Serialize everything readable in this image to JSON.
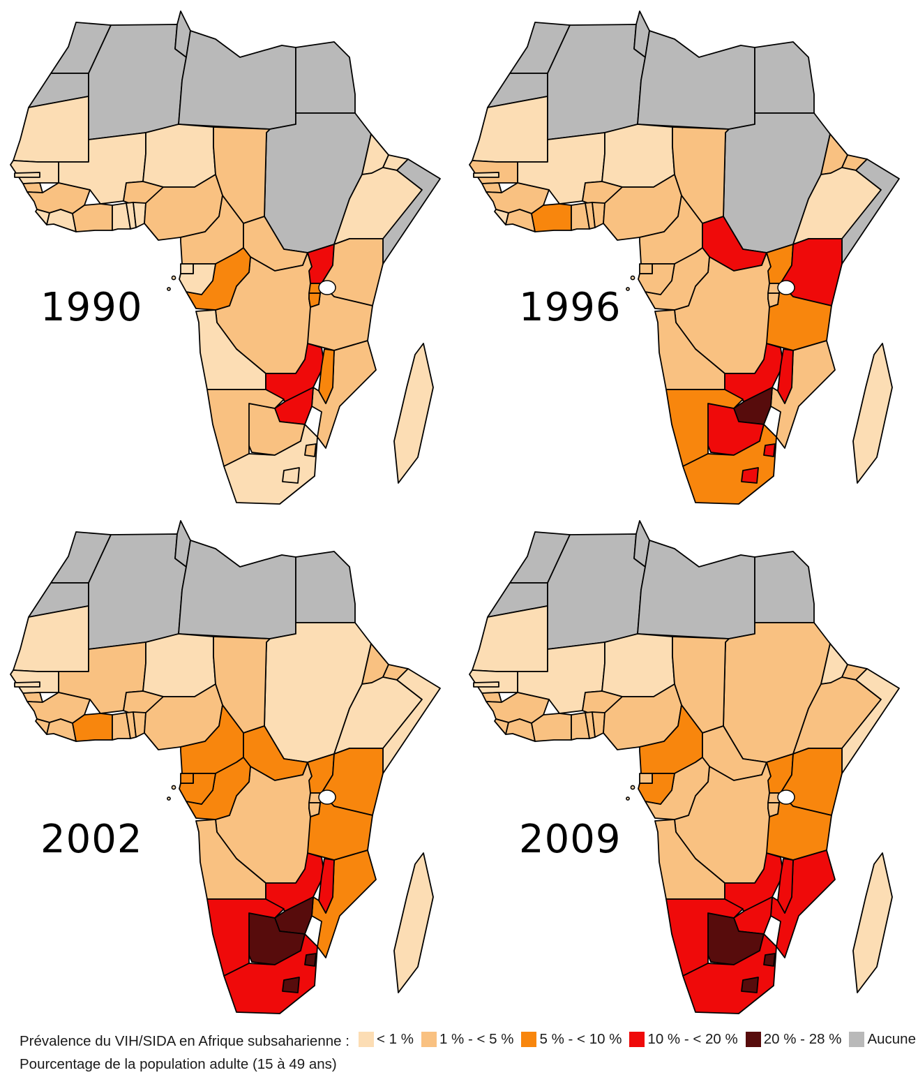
{
  "page": {
    "background": "#ffffff"
  },
  "years": [
    {
      "label": "1990"
    },
    {
      "label": "1996"
    },
    {
      "label": "2002"
    },
    {
      "label": "2009"
    }
  ],
  "legend": {
    "title": "Prévalence du VIH/SIDA en Afrique subsaharienne :",
    "subtitle": "Pourcentage de la population adulte (15 à 49 ans)",
    "items": [
      {
        "key": "lt1",
        "label": "< 1 %",
        "color": "#FCDDB4"
      },
      {
        "key": "1to5",
        "label": "1 % - < 5 %",
        "color": "#F9C181"
      },
      {
        "key": "5to10",
        "label": "5 % - < 10 %",
        "color": "#F8860D"
      },
      {
        "key": "10to20",
        "label": "10 % - < 20 %",
        "color": "#EF0A0A"
      },
      {
        "key": "20to28",
        "label": "20 % - 28 %",
        "color": "#570C0C"
      },
      {
        "key": "nodata",
        "label": "Aucune donnée",
        "color": "#B9B9B9"
      }
    ]
  },
  "map_data": {
    "type": "choropleth",
    "region": "Afrique",
    "border_color": "#000000",
    "lake_color": "#ffffff",
    "countries": {
      "maroc": {
        "name": "Maroc",
        "cats": {
          "1990": "nodata",
          "1996": "nodata",
          "2002": "nodata",
          "2009": "nodata"
        }
      },
      "sahara-occidental": {
        "name": "Sahara occidental",
        "cats": {
          "1990": "nodata",
          "1996": "nodata",
          "2002": "nodata",
          "2009": "nodata"
        }
      },
      "algerie": {
        "name": "Algérie",
        "cats": {
          "1990": "nodata",
          "1996": "nodata",
          "2002": "nodata",
          "2009": "nodata"
        }
      },
      "tunisie": {
        "name": "Tunisie",
        "cats": {
          "1990": "nodata",
          "1996": "nodata",
          "2002": "nodata",
          "2009": "nodata"
        }
      },
      "libye": {
        "name": "Libye",
        "cats": {
          "1990": "nodata",
          "1996": "nodata",
          "2002": "nodata",
          "2009": "nodata"
        }
      },
      "egypte": {
        "name": "Égypte",
        "cats": {
          "1990": "nodata",
          "1996": "nodata",
          "2002": "nodata",
          "2009": "nodata"
        }
      },
      "soudan": {
        "name": "Soudan",
        "cats": {
          "1990": "nodata",
          "1996": "nodata",
          "2002": "lt1",
          "2009": "1to5"
        }
      },
      "somalie": {
        "name": "Somalie",
        "cats": {
          "1990": "nodata",
          "1996": "nodata",
          "2002": "lt1",
          "2009": "lt1"
        }
      },
      "mauritanie": {
        "name": "Mauritanie",
        "cats": {
          "1990": "lt1",
          "1996": "lt1",
          "2002": "lt1",
          "2009": "lt1"
        }
      },
      "mali": {
        "name": "Mali",
        "cats": {
          "1990": "lt1",
          "1996": "lt1",
          "2002": "1to5",
          "2009": "lt1"
        }
      },
      "niger": {
        "name": "Niger",
        "cats": {
          "1990": "lt1",
          "1996": "lt1",
          "2002": "lt1",
          "2009": "lt1"
        }
      },
      "tchad": {
        "name": "Tchad",
        "cats": {
          "1990": "1to5",
          "1996": "1to5",
          "2002": "1to5",
          "2009": "1to5"
        }
      },
      "senegal": {
        "name": "Sénégal",
        "cats": {
          "1990": "lt1",
          "1996": "1to5",
          "2002": "lt1",
          "2009": "lt1"
        }
      },
      "gambie": {
        "name": "Gambie",
        "cats": {
          "1990": "lt1",
          "1996": "lt1",
          "2002": "lt1",
          "2009": "lt1"
        }
      },
      "guinee-bissau": {
        "name": "Guinée-Bissau",
        "cats": {
          "1990": "1to5",
          "1996": "1to5",
          "2002": "1to5",
          "2009": "1to5"
        }
      },
      "guinee": {
        "name": "Guinée",
        "cats": {
          "1990": "1to5",
          "1996": "1to5",
          "2002": "1to5",
          "2009": "1to5"
        }
      },
      "sierra-leone": {
        "name": "Sierra Leone",
        "cats": {
          "1990": "lt1",
          "1996": "lt1",
          "2002": "1to5",
          "2009": "1to5"
        }
      },
      "liberia": {
        "name": "Libéria",
        "cats": {
          "1990": "lt1",
          "1996": "1to5",
          "2002": "1to5",
          "2009": "1to5"
        }
      },
      "cote-divoire": {
        "name": "Côte d'Ivoire",
        "cats": {
          "1990": "1to5",
          "1996": "5to10",
          "2002": "5to10",
          "2009": "1to5"
        }
      },
      "burkina-faso": {
        "name": "Burkina Faso",
        "cats": {
          "1990": "1to5",
          "1996": "1to5",
          "2002": "1to5",
          "2009": "1to5"
        }
      },
      "ghana": {
        "name": "Ghana",
        "cats": {
          "1990": "lt1",
          "1996": "1to5",
          "2002": "1to5",
          "2009": "1to5"
        }
      },
      "togo": {
        "name": "Togo",
        "cats": {
          "1990": "lt1",
          "1996": "1to5",
          "2002": "1to5",
          "2009": "1to5"
        }
      },
      "benin": {
        "name": "Bénin",
        "cats": {
          "1990": "lt1",
          "1996": "1to5",
          "2002": "1to5",
          "2009": "1to5"
        }
      },
      "nigeria": {
        "name": "Nigéria",
        "cats": {
          "1990": "1to5",
          "1996": "1to5",
          "2002": "1to5",
          "2009": "1to5"
        }
      },
      "cameroun": {
        "name": "Cameroun",
        "cats": {
          "1990": "1to5",
          "1996": "1to5",
          "2002": "5to10",
          "2009": "5to10"
        }
      },
      "republique-centrafricaine": {
        "name": "République centrafricaine",
        "cats": {
          "1990": "1to5",
          "1996": "10to20",
          "2002": "5to10",
          "2009": "1to5"
        }
      },
      "erythree": {
        "name": "Érythrée",
        "cats": {
          "1990": "lt1",
          "1996": "1to5",
          "2002": "1to5",
          "2009": "lt1"
        }
      },
      "djibouti": {
        "name": "Djibouti",
        "cats": {
          "1990": "lt1",
          "1996": "1to5",
          "2002": "1to5",
          "2009": "1to5"
        }
      },
      "ethiopie": {
        "name": "Éthiopie",
        "cats": {
          "1990": "lt1",
          "1996": "lt1",
          "2002": "lt1",
          "2009": "1to5"
        }
      },
      "rd-congo": {
        "name": "RD Congo",
        "cats": {
          "1990": "1to5",
          "1996": "1to5",
          "2002": "1to5",
          "2009": "1to5"
        }
      },
      "ouganda": {
        "name": "Ouganda",
        "cats": {
          "1990": "10to20",
          "1996": "5to10",
          "2002": "5to10",
          "2009": "5to10"
        }
      },
      "kenya": {
        "name": "Kenya",
        "cats": {
          "1990": "1to5",
          "1996": "10to20",
          "2002": "5to10",
          "2009": "5to10"
        }
      },
      "congo": {
        "name": "Congo",
        "cats": {
          "1990": "5to10",
          "1996": "1to5",
          "2002": "5to10",
          "2009": "1to5"
        }
      },
      "gabon": {
        "name": "Gabon",
        "cats": {
          "1990": "lt1",
          "1996": "1to5",
          "2002": "5to10",
          "2009": "5to10"
        }
      },
      "guinee-equatoriale": {
        "name": "Guinée équatoriale",
        "cats": {
          "1990": "lt1",
          "1996": "1to5",
          "2002": "5to10",
          "2009": "1to5"
        }
      },
      "angola": {
        "name": "Angola",
        "cats": {
          "1990": "lt1",
          "1996": "1to5",
          "2002": "1to5",
          "2009": "1to5"
        }
      },
      "zambie": {
        "name": "Zambie",
        "cats": {
          "1990": "10to20",
          "1996": "10to20",
          "2002": "10to20",
          "2009": "10to20"
        }
      },
      "tanzanie": {
        "name": "Tanzanie",
        "cats": {
          "1990": "1to5",
          "1996": "5to10",
          "2002": "5to10",
          "2009": "5to10"
        }
      },
      "rwanda": {
        "name": "Rwanda",
        "cats": {
          "1990": "5to10",
          "1996": "1to5",
          "2002": "1to5",
          "2009": "1to5"
        }
      },
      "burundi": {
        "name": "Burundi",
        "cats": {
          "1990": "5to10",
          "1996": "1to5",
          "2002": "1to5",
          "2009": "1to5"
        }
      },
      "malawi": {
        "name": "Malawi",
        "cats": {
          "1990": "5to10",
          "1996": "10to20",
          "2002": "10to20",
          "2009": "10to20"
        }
      },
      "mozambique": {
        "name": "Mozambique",
        "cats": {
          "1990": "1to5",
          "1996": "1to5",
          "2002": "5to10",
          "2009": "10to20"
        }
      },
      "zimbabwe": {
        "name": "Zimbabwe",
        "cats": {
          "1990": "10to20",
          "1996": "20to28",
          "2002": "20to28",
          "2009": "10to20"
        }
      },
      "botswana": {
        "name": "Botswana",
        "cats": {
          "1990": "1to5",
          "1996": "10to20",
          "2002": "20to28",
          "2009": "20to28"
        }
      },
      "namibie": {
        "name": "Namibie",
        "cats": {
          "1990": "1to5",
          "1996": "5to10",
          "2002": "10to20",
          "2009": "10to20"
        }
      },
      "afrique-du-sud": {
        "name": "Afrique du Sud",
        "cats": {
          "1990": "lt1",
          "1996": "5to10",
          "2002": "10to20",
          "2009": "10to20"
        }
      },
      "lesotho": {
        "name": "Lesotho",
        "cats": {
          "1990": "lt1",
          "1996": "10to20",
          "2002": "20to28",
          "2009": "20to28"
        }
      },
      "swaziland": {
        "name": "Swaziland",
        "cats": {
          "1990": "1to5",
          "1996": "10to20",
          "2002": "20to28",
          "2009": "20to28"
        }
      },
      "madagascar": {
        "name": "Madagascar",
        "cats": {
          "1990": "lt1",
          "1996": "lt1",
          "2002": "lt1",
          "2009": "lt1"
        }
      },
      "sao-tome-et-principe": {
        "name": "Sao Tomé-et-Principe",
        "cats": {
          "1990": "lt1",
          "1996": "lt1",
          "2002": "lt1",
          "2009": "lt1"
        }
      }
    }
  }
}
